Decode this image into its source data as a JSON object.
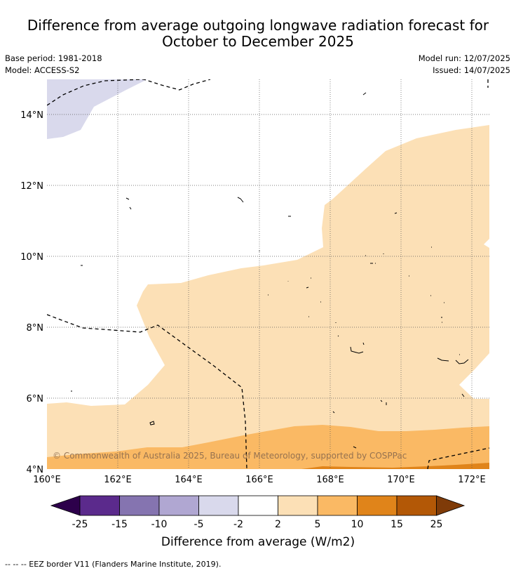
{
  "title": {
    "line1": "Difference from average outgoing longwave radiation forecast for",
    "line2": "October to December 2025"
  },
  "meta": {
    "base_period": "Base period: 1981-2018",
    "model": "Model: ACCESS-S2",
    "model_run": "Model run: 12/07/2025",
    "issued": "Issued: 14/07/2025"
  },
  "map": {
    "x_ticks": [
      "160°E",
      "162°E",
      "164°E",
      "166°E",
      "168°E",
      "170°E",
      "172°E"
    ],
    "y_ticks": [
      "14°N",
      "12°N",
      "10°N",
      "8°N",
      "6°N",
      "4°N"
    ],
    "copyright": "© Commonwealth of Australia 2025, Bureau of Meteorology, supported by COSPPac"
  },
  "colorbar": {
    "labels": [
      "-25",
      "-15",
      "-10",
      "-5",
      "-2",
      "2",
      "5",
      "10",
      "15",
      "25"
    ],
    "colors": [
      "#5b2a8c",
      "#8574b0",
      "#b0a7d2",
      "#d9d9ec",
      "#ffffff",
      "#fce0b6",
      "#fab964",
      "#e0841a",
      "#b35806"
    ],
    "under_color": "#2d004b",
    "over_color": "#7f3b08",
    "title": "Difference from average (W/m2)"
  },
  "footnote": "--  --  -- EEZ border V11 (Flanders Marine Institute, 2019)."
}
